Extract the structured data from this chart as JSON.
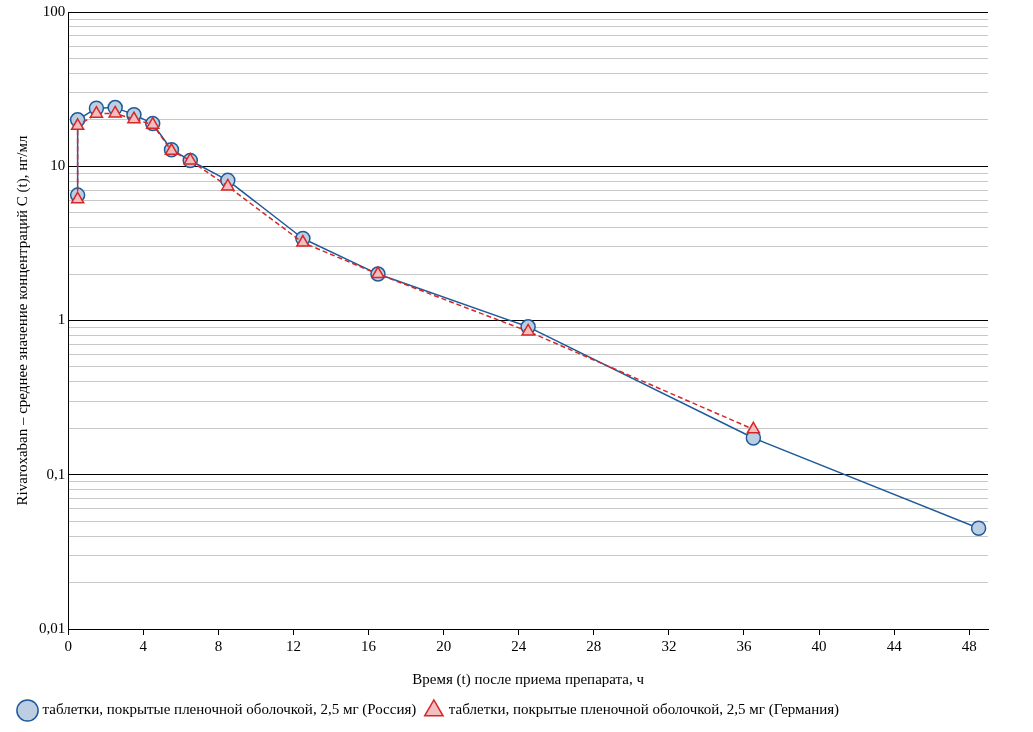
{
  "chart_data": {
    "type": "line",
    "xlabel": "Время (t) после приема препарата, ч",
    "ylabel": "Rivaroxaban – среднее значение концентраций С (t), нг/мл",
    "log": "y",
    "grid": "y",
    "legend": "bottom",
    "xlim": [
      0,
      49
    ],
    "xticks": [
      0,
      4,
      8,
      12,
      16,
      20,
      24,
      28,
      32,
      36,
      40,
      44,
      48
    ],
    "ylim": [
      0.01,
      100
    ],
    "yticks": [
      {
        "value": 0.01,
        "label": "0,01"
      },
      {
        "value": 0.02,
        "label": null
      },
      {
        "value": 0.03,
        "label": null
      },
      {
        "value": 0.04,
        "label": null
      },
      {
        "value": 0.05,
        "label": null
      },
      {
        "value": 0.06,
        "label": null
      },
      {
        "value": 0.07,
        "label": null
      },
      {
        "value": 0.08,
        "label": null
      },
      {
        "value": 0.09,
        "label": null
      },
      {
        "value": 0.1,
        "label": "0,1"
      },
      {
        "value": 0.2,
        "label": null
      },
      {
        "value": 0.3,
        "label": null
      },
      {
        "value": 0.4,
        "label": null
      },
      {
        "value": 0.5,
        "label": null
      },
      {
        "value": 0.6,
        "label": null
      },
      {
        "value": 0.7,
        "label": null
      },
      {
        "value": 0.8,
        "label": null
      },
      {
        "value": 0.9,
        "label": null
      },
      1,
      {
        "value": 2,
        "label": null
      },
      {
        "value": 3,
        "label": null
      },
      {
        "value": 4,
        "label": null
      },
      {
        "value": 5,
        "label": null
      },
      {
        "value": 6,
        "label": null
      },
      {
        "value": 7,
        "label": null
      },
      {
        "value": 8,
        "label": null
      },
      {
        "value": 9,
        "label": null
      },
      10,
      {
        "value": 20,
        "label": null
      },
      {
        "value": 30,
        "label": null
      },
      {
        "value": 40,
        "label": null
      },
      {
        "value": 50,
        "label": null
      },
      {
        "value": 60,
        "label": null
      },
      {
        "value": 70,
        "label": null
      },
      {
        "value": 80,
        "label": null
      },
      {
        "value": 90,
        "label": null
      },
      100
    ],
    "series": [
      {
        "name": "таблетки, покрытые пленочной оболочкой, 2,5 мг (Россия)",
        "color": "#1f5a9a",
        "marker": "circle",
        "line_style": "solid",
        "x": [
          0.5,
          0.5,
          1.5,
          2.5,
          3.5,
          4.5,
          5.5,
          6.5,
          8.5,
          12.5,
          16.5,
          24.5,
          36.5,
          48.5
        ],
        "values": [
          6.5,
          20,
          23.8,
          24,
          21.6,
          18.9,
          12.8,
          10.9,
          8.1,
          3.4,
          2.0,
          0.91,
          0.173,
          0.045
        ]
      },
      {
        "name": "таблетки, покрытые пленочной оболочкой, 2,5 мг (Германия)",
        "color": "#d62728",
        "marker": "triangle",
        "line_style": "dashed",
        "x": [
          0.5,
          0.5,
          1.5,
          2.5,
          3.5,
          4.5,
          5.5,
          6.5,
          8.5,
          12.5,
          16.5,
          24.5,
          36.5
        ],
        "values": [
          6.1,
          18.3,
          21.9,
          22,
          20.2,
          18.6,
          12.6,
          10.9,
          7.4,
          3.2,
          2.0,
          0.85,
          0.197
        ]
      }
    ]
  }
}
